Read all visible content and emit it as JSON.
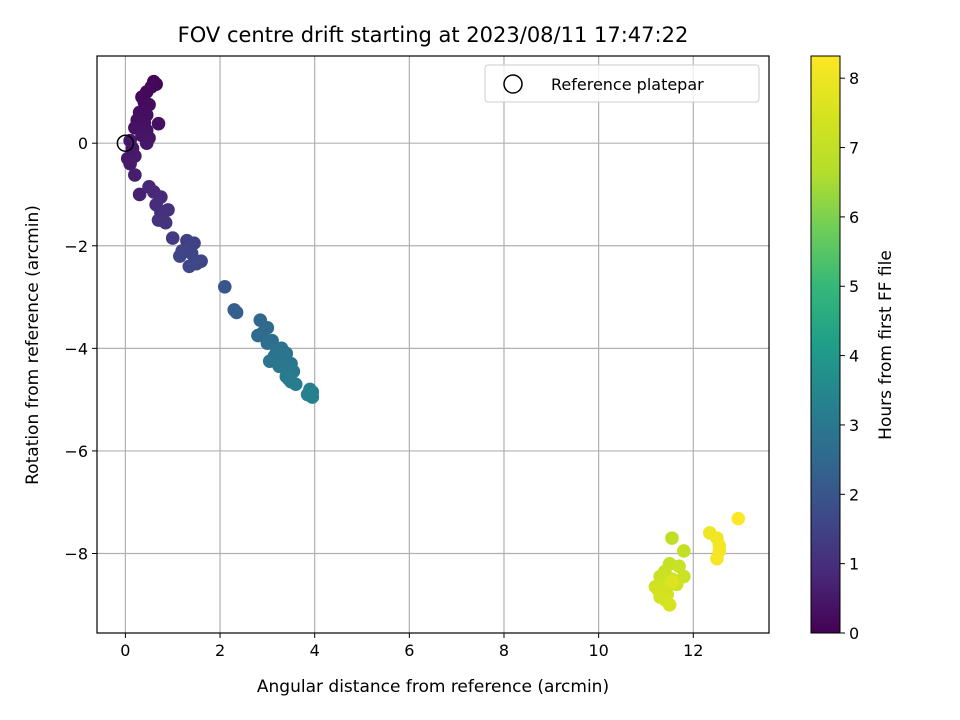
{
  "chart_data": {
    "type": "scatter",
    "title": "FOV centre drift starting at 2023/08/11 17:47:22",
    "xlabel": "Angular distance from reference (arcmin)",
    "ylabel": "Rotation from reference (arcmin)",
    "xlim": [
      -0.6,
      13.6
    ],
    "ylim": [
      -9.55,
      1.7
    ],
    "xticks": [
      0,
      2,
      4,
      6,
      8,
      10,
      12
    ],
    "yticks": [
      -8,
      -6,
      -4,
      -2,
      0
    ],
    "grid": true,
    "legend": {
      "position": "top-right",
      "entries": [
        "Reference platepar"
      ]
    },
    "reference_point": {
      "x": 0,
      "y": 0
    },
    "colorbar": {
      "label": "Hours from first FF file",
      "range": [
        0,
        8.32
      ],
      "ticks": [
        0,
        1,
        2,
        3,
        4,
        5,
        6,
        7,
        8
      ],
      "colormap": "viridis"
    },
    "series": [
      {
        "points": [
          {
            "x": 0.6,
            "y": 1.2,
            "t": 0.05
          },
          {
            "x": 0.65,
            "y": 1.15,
            "t": 0.1
          },
          {
            "x": 0.55,
            "y": 1.1,
            "t": 0.12
          },
          {
            "x": 0.45,
            "y": 1.0,
            "t": 0.15
          },
          {
            "x": 0.35,
            "y": 0.9,
            "t": 0.18
          },
          {
            "x": 0.4,
            "y": 0.8,
            "t": 0.2
          },
          {
            "x": 0.5,
            "y": 0.75,
            "t": 0.22
          },
          {
            "x": 0.3,
            "y": 0.6,
            "t": 0.25
          },
          {
            "x": 0.45,
            "y": 0.55,
            "t": 0.28
          },
          {
            "x": 0.25,
            "y": 0.45,
            "t": 0.3
          },
          {
            "x": 0.4,
            "y": 0.4,
            "t": 0.32
          },
          {
            "x": 0.7,
            "y": 0.38,
            "t": 0.33
          },
          {
            "x": 0.2,
            "y": 0.3,
            "t": 0.35
          },
          {
            "x": 0.45,
            "y": 0.25,
            "t": 0.37
          },
          {
            "x": 0.35,
            "y": 0.15,
            "t": 0.4
          },
          {
            "x": 0.5,
            "y": 0.1,
            "t": 0.42
          },
          {
            "x": 0.45,
            "y": 0.0,
            "t": 0.44
          },
          {
            "x": 0.1,
            "y": 0.05,
            "t": 0.46
          },
          {
            "x": 0.15,
            "y": -0.1,
            "t": 0.48
          },
          {
            "x": 0.05,
            "y": -0.3,
            "t": 0.5
          },
          {
            "x": 0.2,
            "y": -0.25,
            "t": 0.52
          },
          {
            "x": 0.1,
            "y": -0.4,
            "t": 0.55
          },
          {
            "x": 0.2,
            "y": -0.62,
            "t": 0.6
          },
          {
            "x": 0.3,
            "y": -1.0,
            "t": 0.7
          },
          {
            "x": 0.5,
            "y": -0.85,
            "t": 0.8
          },
          {
            "x": 0.6,
            "y": -0.95,
            "t": 0.85
          },
          {
            "x": 0.75,
            "y": -1.05,
            "t": 0.9
          },
          {
            "x": 0.65,
            "y": -1.2,
            "t": 0.95
          },
          {
            "x": 0.75,
            "y": -1.35,
            "t": 1.0
          },
          {
            "x": 0.9,
            "y": -1.3,
            "t": 1.05
          },
          {
            "x": 0.7,
            "y": -1.5,
            "t": 1.1
          },
          {
            "x": 0.85,
            "y": -1.55,
            "t": 1.12
          },
          {
            "x": 1.0,
            "y": -1.85,
            "t": 1.3
          },
          {
            "x": 1.3,
            "y": -1.9,
            "t": 1.4
          },
          {
            "x": 1.45,
            "y": -1.95,
            "t": 1.45
          },
          {
            "x": 1.35,
            "y": -2.05,
            "t": 1.5
          },
          {
            "x": 1.2,
            "y": -2.1,
            "t": 1.52
          },
          {
            "x": 1.4,
            "y": -2.15,
            "t": 1.55
          },
          {
            "x": 1.15,
            "y": -2.2,
            "t": 1.58
          },
          {
            "x": 1.6,
            "y": -2.3,
            "t": 1.6
          },
          {
            "x": 1.5,
            "y": -2.35,
            "t": 1.62
          },
          {
            "x": 1.35,
            "y": -2.4,
            "t": 1.65
          },
          {
            "x": 2.1,
            "y": -2.8,
            "t": 2.0
          },
          {
            "x": 2.3,
            "y": -3.25,
            "t": 2.2
          },
          {
            "x": 2.35,
            "y": -3.3,
            "t": 2.25
          },
          {
            "x": 2.85,
            "y": -3.45,
            "t": 2.5
          },
          {
            "x": 3.0,
            "y": -3.6,
            "t": 2.55
          },
          {
            "x": 2.9,
            "y": -3.7,
            "t": 2.6
          },
          {
            "x": 2.8,
            "y": -3.75,
            "t": 2.62
          },
          {
            "x": 3.1,
            "y": -3.85,
            "t": 2.7
          },
          {
            "x": 3.0,
            "y": -3.9,
            "t": 2.72
          },
          {
            "x": 3.3,
            "y": -4.0,
            "t": 2.8
          },
          {
            "x": 3.2,
            "y": -4.05,
            "t": 2.82
          },
          {
            "x": 3.4,
            "y": -4.1,
            "t": 2.85
          },
          {
            "x": 3.15,
            "y": -4.15,
            "t": 2.87
          },
          {
            "x": 3.35,
            "y": -4.2,
            "t": 2.9
          },
          {
            "x": 3.05,
            "y": -4.25,
            "t": 2.92
          },
          {
            "x": 3.5,
            "y": -4.3,
            "t": 2.95
          },
          {
            "x": 3.25,
            "y": -4.35,
            "t": 2.97
          },
          {
            "x": 3.45,
            "y": -4.4,
            "t": 3.0
          },
          {
            "x": 3.55,
            "y": -4.45,
            "t": 3.02
          },
          {
            "x": 3.4,
            "y": -4.55,
            "t": 3.05
          },
          {
            "x": 3.5,
            "y": -4.65,
            "t": 3.1
          },
          {
            "x": 3.6,
            "y": -4.7,
            "t": 3.12
          },
          {
            "x": 3.45,
            "y": -4.6,
            "t": 3.15
          },
          {
            "x": 3.9,
            "y": -4.8,
            "t": 3.2
          },
          {
            "x": 3.95,
            "y": -4.85,
            "t": 3.25
          },
          {
            "x": 3.85,
            "y": -4.9,
            "t": 3.28
          },
          {
            "x": 3.95,
            "y": -4.95,
            "t": 3.3
          },
          {
            "x": 11.55,
            "y": -7.7,
            "t": 6.9
          },
          {
            "x": 11.8,
            "y": -7.95,
            "t": 7.0
          },
          {
            "x": 11.5,
            "y": -8.2,
            "t": 7.05
          },
          {
            "x": 11.7,
            "y": -8.25,
            "t": 7.1
          },
          {
            "x": 11.4,
            "y": -8.35,
            "t": 7.15
          },
          {
            "x": 11.3,
            "y": -8.45,
            "t": 7.2
          },
          {
            "x": 11.8,
            "y": -8.45,
            "t": 7.22
          },
          {
            "x": 11.55,
            "y": -8.5,
            "t": 7.25
          },
          {
            "x": 11.65,
            "y": -8.6,
            "t": 7.28
          },
          {
            "x": 11.5,
            "y": -8.6,
            "t": 7.3
          },
          {
            "x": 11.2,
            "y": -8.65,
            "t": 7.32
          },
          {
            "x": 11.35,
            "y": -8.7,
            "t": 7.35
          },
          {
            "x": 11.25,
            "y": -8.7,
            "t": 7.37
          },
          {
            "x": 11.45,
            "y": -8.8,
            "t": 7.4
          },
          {
            "x": 11.3,
            "y": -8.85,
            "t": 7.42
          },
          {
            "x": 11.4,
            "y": -8.9,
            "t": 7.45
          },
          {
            "x": 11.5,
            "y": -9.0,
            "t": 7.5
          },
          {
            "x": 11.55,
            "y": -8.55,
            "t": 7.6
          },
          {
            "x": 12.35,
            "y": -7.6,
            "t": 8.0
          },
          {
            "x": 12.5,
            "y": -7.7,
            "t": 8.05
          },
          {
            "x": 12.55,
            "y": -7.85,
            "t": 8.1
          },
          {
            "x": 12.55,
            "y": -7.95,
            "t": 8.15
          },
          {
            "x": 12.5,
            "y": -8.1,
            "t": 8.2
          },
          {
            "x": 12.95,
            "y": -7.32,
            "t": 8.3
          }
        ]
      }
    ]
  }
}
